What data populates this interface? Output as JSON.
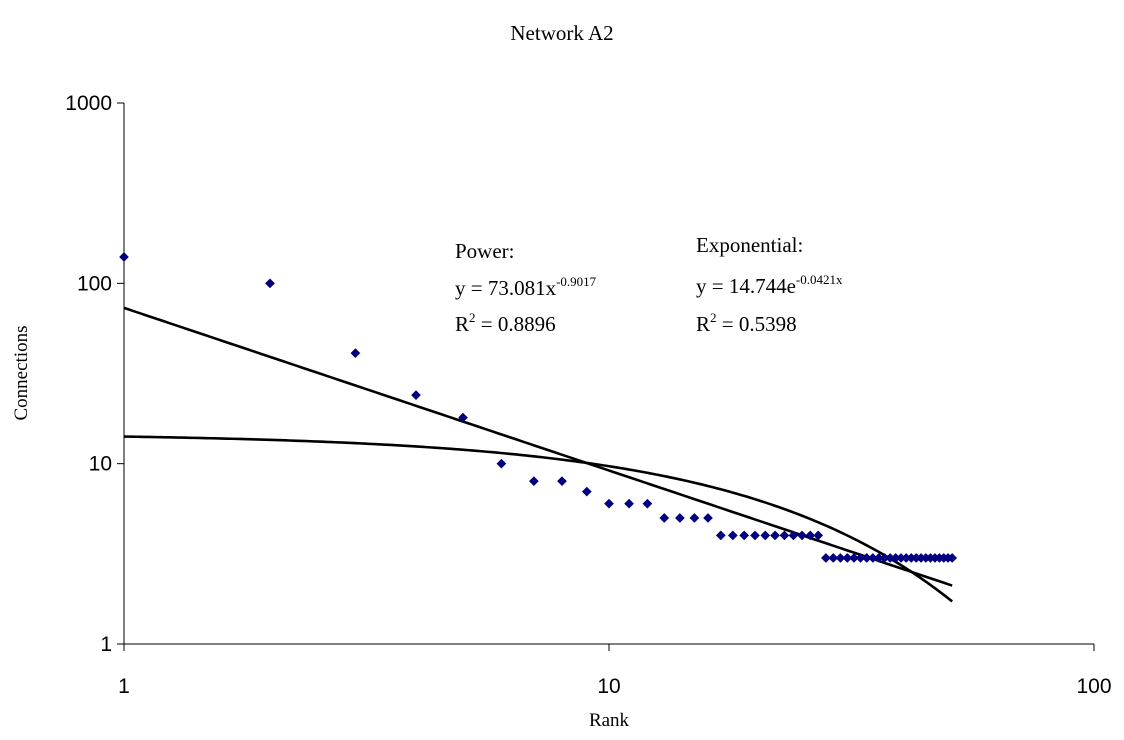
{
  "chart_data": {
    "type": "scatter",
    "title": "Network A2",
    "xlabel": "Rank",
    "ylabel": "Connections",
    "x_scale": "log",
    "y_scale": "log",
    "xlim": [
      1,
      100
    ],
    "ylim": [
      1,
      1000
    ],
    "x_ticks": [
      "1",
      "10",
      "100"
    ],
    "y_ticks": [
      "1",
      "10",
      "100",
      "1000"
    ],
    "grid": false,
    "legend": "none",
    "marker_color": "#000080",
    "line_color": "#000000",
    "series": [
      {
        "x": [
          1,
          2,
          3,
          4,
          5,
          6,
          7,
          8,
          9,
          10,
          11,
          12,
          13,
          14,
          15,
          16,
          17,
          18,
          19,
          20,
          21,
          22,
          23,
          24,
          25,
          26,
          27,
          28,
          29,
          30,
          31,
          32,
          33,
          34,
          35,
          36,
          37,
          38,
          39,
          40,
          41,
          42,
          43,
          44,
          45,
          46,
          47,
          48,
          49,
          50,
          51
        ],
        "y": [
          140,
          100,
          41,
          24,
          18,
          10,
          8,
          8,
          7,
          6,
          6,
          6,
          5,
          5,
          5,
          5,
          4,
          4,
          4,
          4,
          4,
          4,
          4,
          4,
          4,
          4,
          4,
          3,
          3,
          3,
          3,
          3,
          3,
          3,
          3,
          3,
          3,
          3,
          3,
          3,
          3,
          3,
          3,
          3,
          3,
          3,
          3,
          3,
          3,
          3,
          3
        ]
      }
    ],
    "trendlines": [
      {
        "kind": "power",
        "a": 73.081,
        "b": -0.9017,
        "x_range": [
          1,
          51
        ],
        "label": "Power:",
        "equation_base": "y = 73.081x",
        "equation_exp": "-0.9017",
        "r2_prefix": "R",
        "r2_sup": "2",
        "r2_value": " = 0.8896"
      },
      {
        "kind": "exponential",
        "a": 14.744,
        "b": -0.0421,
        "x_range": [
          1,
          51
        ],
        "label": "Exponential:",
        "equation_base": "y = 14.744e",
        "equation_exp": "-0.0421x",
        "r2_prefix": "R",
        "r2_sup": "2",
        "r2_value": " = 0.5398"
      }
    ]
  }
}
